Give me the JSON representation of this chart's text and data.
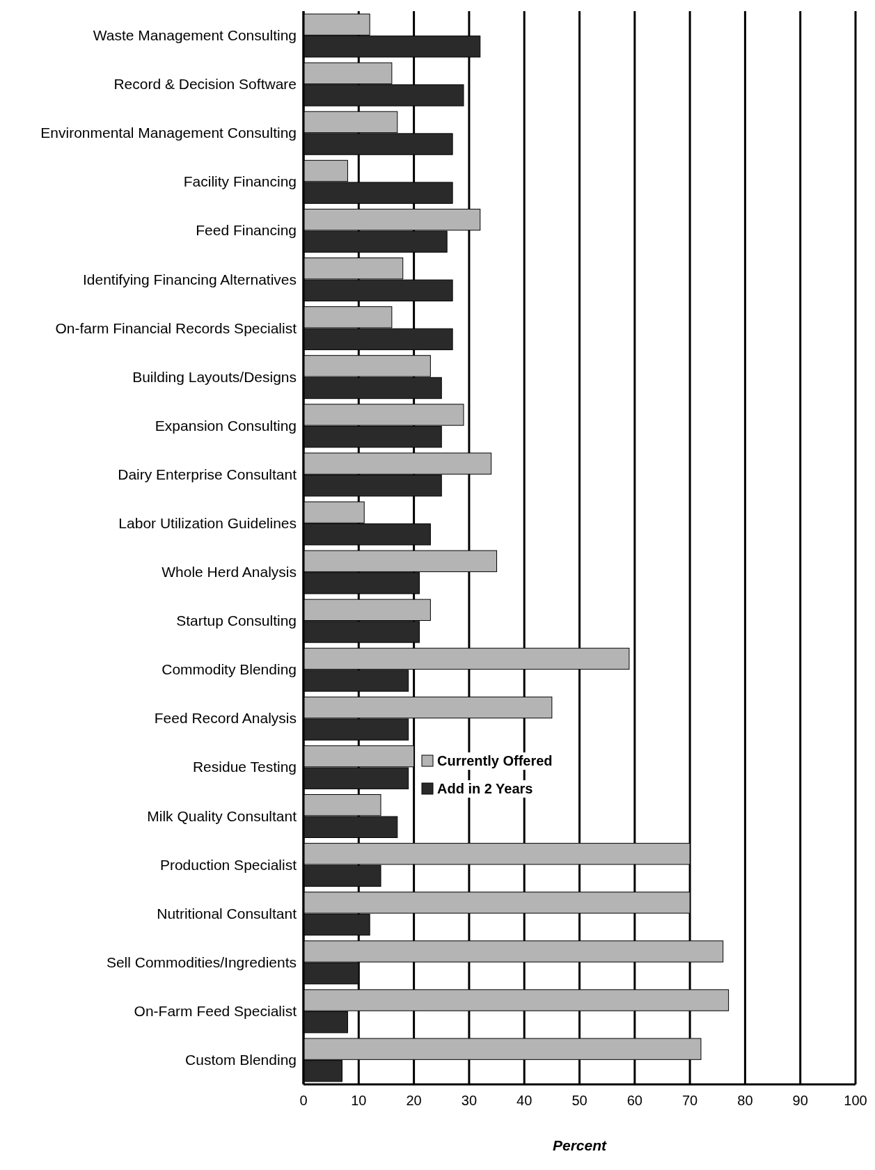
{
  "chart_data": {
    "type": "bar",
    "orientation": "horizontal",
    "xlabel": "Percent",
    "categories": [
      "Waste Management Consulting",
      "Record & Decision Software",
      "Environmental Management Consulting",
      "Facility Financing",
      "Feed Financing",
      "Identifying Financing Alternatives",
      "On-farm Financial Records Specialist",
      "Building Layouts/Designs",
      "Expansion Consulting",
      "Dairy Enterprise Consultant",
      "Labor Utilization Guidelines",
      "Whole Herd Analysis",
      "Startup Consulting",
      "Commodity Blending",
      "Feed Record Analysis",
      "Residue Testing",
      "Milk Quality Consultant",
      "Production Specialist",
      "Nutritional Consultant",
      "Sell Commodities/Ingredients",
      "On-Farm Feed Specialist",
      "Custom Blending"
    ],
    "series": [
      {
        "name": "Currently Offered",
        "color": "#b4b4b4",
        "values": [
          12,
          16,
          17,
          8,
          32,
          18,
          16,
          23,
          29,
          34,
          11,
          35,
          23,
          59,
          45,
          20,
          14,
          70,
          70,
          76,
          77,
          72
        ]
      },
      {
        "name": "Add in 2 Years",
        "color": "#2a2a2a",
        "values": [
          32,
          29,
          27,
          27,
          26,
          27,
          27,
          25,
          25,
          25,
          23,
          21,
          21,
          19,
          19,
          19,
          17,
          14,
          12,
          10,
          8,
          7
        ]
      }
    ],
    "xlim": [
      0,
      100
    ],
    "xticks": [
      0,
      10,
      20,
      30,
      40,
      50,
      60,
      70,
      80,
      90,
      100
    ],
    "grid": "x",
    "legend": "bottom left"
  }
}
